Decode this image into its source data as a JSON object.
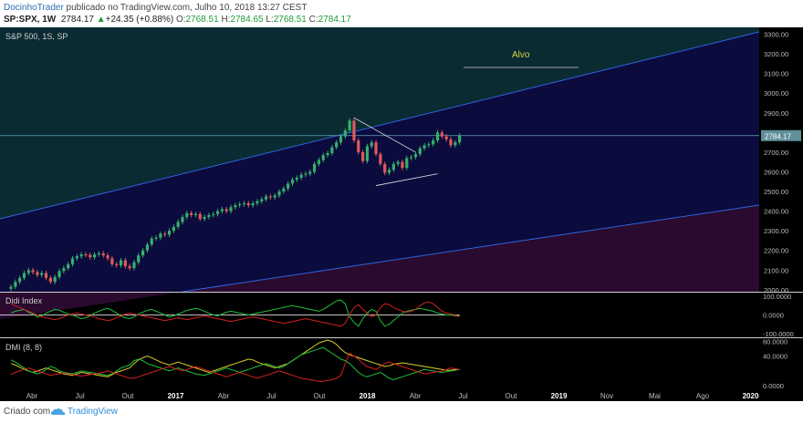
{
  "header": {
    "author": "DocinhoTrader",
    "published_text": " publicado no TradingView.com, Julho 10, 2018 13:27 CEST",
    "symbol": "SP:SPX, 1W",
    "last": "2784.17",
    "change": "+24.35 (+0.88%)",
    "open_label": "O:",
    "open": "2768.51",
    "high_label": "H:",
    "high": "2784.65",
    "low_label": "L:",
    "low": "2768.51",
    "close_label": "C:",
    "close": "2784.17"
  },
  "footer": {
    "created_with": "Criado com",
    "brand": "TradingView"
  },
  "colors": {
    "bg": "#000000",
    "up": "#35b06a",
    "down": "#e0595c",
    "channel_upper_fill": "#0b2b33",
    "channel_mid_fill": "#0b0b3d",
    "channel_lower_fill": "#2a0a2e",
    "channel_line": "#2f63e0",
    "price_line": "#66a8b8",
    "price_tag": "#5f8f98",
    "didi_green": "#1fbf3a",
    "didi_red": "#d62020",
    "dmi_yellow": "#d8cf2a",
    "target_text": "#d8d23c"
  },
  "chart_data": [
    {
      "type": "candlestick",
      "title": "S&P 500, 1S, SP",
      "price_scale": [
        "3300.00",
        "3200.00",
        "3100.00",
        "3000.00",
        "2900.00",
        "2800.00",
        "2700.00",
        "2600.00",
        "2500.00",
        "2400.00",
        "2300.00",
        "2200.00",
        "2100.00",
        "2000.00"
      ],
      "ylim": [
        1990,
        3335
      ],
      "last_price_label": "2784.17",
      "annotation": "Alvo",
      "closes": [
        2015,
        2040,
        2060,
        2085,
        2100,
        2090,
        2075,
        2085,
        2060,
        2040,
        2065,
        2095,
        2110,
        2130,
        2160,
        2170,
        2180,
        2178,
        2165,
        2180,
        2185,
        2175,
        2160,
        2130,
        2125,
        2150,
        2120,
        2110,
        2140,
        2175,
        2200,
        2230,
        2260,
        2265,
        2285,
        2280,
        2300,
        2320,
        2345,
        2370,
        2390,
        2380,
        2385,
        2360,
        2370,
        2380,
        2385,
        2400,
        2410,
        2400,
        2420,
        2430,
        2435,
        2440,
        2430,
        2440,
        2450,
        2460,
        2475,
        2470,
        2480,
        2500,
        2515,
        2540,
        2560,
        2570,
        2585,
        2590,
        2600,
        2640,
        2660,
        2685,
        2695,
        2725,
        2750,
        2780,
        2810,
        2860,
        2760,
        2700,
        2655,
        2730,
        2750,
        2690,
        2640,
        2595,
        2610,
        2640,
        2650,
        2620,
        2670,
        2675,
        2690,
        2720,
        2735,
        2740,
        2760,
        2800,
        2780,
        2765,
        2735,
        2750,
        2784.17
      ],
      "x_axis_labels": [
        "Abr",
        "Jul",
        "Out",
        "2017",
        "Abr",
        "Jul",
        "Out",
        "2018",
        "Abr",
        "Jul",
        "Out",
        "2019",
        "Nov",
        "Mai",
        "Ago",
        "2020"
      ]
    },
    {
      "type": "line",
      "title": "Didi Index",
      "scale_labels": [
        "100.0000",
        "0.0000",
        "-100.0000"
      ],
      "ylim": [
        -100,
        100
      ],
      "series": [
        {
          "name": "green",
          "values": [
            10,
            20,
            25,
            30,
            15,
            5,
            -10,
            -5,
            10,
            20,
            30,
            25,
            15,
            5,
            0,
            -10,
            -20,
            -15,
            -5,
            10,
            20,
            30,
            35,
            25,
            10,
            -5,
            -15,
            -20,
            -10,
            5,
            15,
            25,
            30,
            20,
            10,
            0,
            -10,
            -5,
            5,
            15,
            25,
            30,
            35,
            30,
            20,
            10,
            0,
            -5,
            5,
            15,
            20,
            15,
            10,
            5,
            0,
            5,
            10,
            15,
            20,
            25,
            30,
            35,
            40,
            45,
            50,
            45,
            40,
            35,
            30,
            25,
            20,
            30,
            45,
            60,
            75,
            80,
            60,
            -10,
            -40,
            -60,
            -20,
            10,
            30,
            20,
            -30,
            -60,
            -50,
            -30,
            -10,
            10,
            20,
            25,
            30,
            35,
            30,
            25,
            20,
            10,
            5,
            0,
            0,
            -5,
            -5
          ]
        },
        {
          "name": "red",
          "values": [
            60,
            50,
            40,
            30,
            20,
            10,
            0,
            -10,
            -15,
            -20,
            -25,
            -20,
            -10,
            0,
            5,
            10,
            5,
            0,
            -5,
            -10,
            -20,
            -25,
            -30,
            -25,
            -15,
            -5,
            5,
            10,
            5,
            0,
            -5,
            -10,
            -15,
            -20,
            -25,
            -30,
            -25,
            -20,
            -15,
            -20,
            -25,
            -20,
            -15,
            -10,
            -5,
            -10,
            -15,
            -20,
            -25,
            -30,
            -35,
            -30,
            -25,
            -20,
            -15,
            -10,
            -15,
            -20,
            -25,
            -30,
            -35,
            -40,
            -45,
            -40,
            -35,
            -30,
            -25,
            -20,
            -25,
            -30,
            -35,
            -40,
            -45,
            -50,
            -55,
            -60,
            -45,
            0,
            40,
            55,
            30,
            10,
            -10,
            0,
            40,
            60,
            55,
            40,
            30,
            20,
            15,
            20,
            30,
            50,
            65,
            70,
            60,
            40,
            20,
            10,
            5,
            0,
            -10
          ]
        }
      ]
    },
    {
      "type": "line",
      "title": "DMI (8, 8)",
      "scale_labels": [
        "60.0000",
        "40.0000",
        "0.0000"
      ],
      "ylim": [
        0,
        62
      ],
      "series": [
        {
          "name": "yellow",
          "values": [
            30,
            28,
            25,
            22,
            20,
            18,
            20,
            22,
            24,
            22,
            20,
            18,
            16,
            15,
            14,
            16,
            18,
            17,
            16,
            15,
            14,
            13,
            12,
            15,
            18,
            20,
            22,
            24,
            30,
            35,
            38,
            40,
            38,
            35,
            32,
            30,
            28,
            30,
            32,
            30,
            28,
            26,
            24,
            22,
            20,
            18,
            20,
            22,
            24,
            26,
            28,
            30,
            32,
            34,
            36,
            35,
            32,
            30,
            28,
            26,
            24,
            26,
            28,
            30,
            34,
            38,
            42,
            46,
            50,
            54,
            58,
            60,
            62,
            60,
            56,
            50,
            45,
            42,
            40,
            38,
            36,
            34,
            32,
            30,
            28,
            26,
            27,
            29,
            30,
            31,
            30,
            29,
            28,
            27,
            26,
            25,
            24,
            23,
            22,
            21,
            21,
            22,
            22
          ]
        },
        {
          "name": "green",
          "values": [
            35,
            32,
            28,
            24,
            20,
            18,
            16,
            18,
            22,
            26,
            24,
            20,
            18,
            17,
            16,
            18,
            20,
            19,
            18,
            17,
            16,
            15,
            14,
            16,
            20,
            24,
            26,
            28,
            34,
            36,
            34,
            30,
            28,
            26,
            24,
            22,
            20,
            22,
            24,
            22,
            20,
            18,
            16,
            15,
            14,
            16,
            18,
            20,
            22,
            24,
            22,
            20,
            18,
            20,
            22,
            24,
            26,
            28,
            30,
            28,
            26,
            24,
            26,
            30,
            34,
            38,
            42,
            44,
            46,
            48,
            50,
            52,
            48,
            44,
            40,
            36,
            34,
            30,
            24,
            18,
            14,
            12,
            14,
            16,
            18,
            14,
            10,
            8,
            10,
            12,
            14,
            16,
            18,
            20,
            22,
            21,
            20,
            19,
            18,
            19,
            20,
            21,
            22
          ]
        },
        {
          "name": "red",
          "values": [
            15,
            18,
            20,
            22,
            24,
            22,
            20,
            18,
            16,
            14,
            15,
            16,
            17,
            16,
            15,
            14,
            13,
            14,
            15,
            16,
            17,
            18,
            20,
            18,
            16,
            14,
            12,
            10,
            10,
            12,
            14,
            16,
            18,
            20,
            22,
            24,
            26,
            24,
            22,
            20,
            22,
            24,
            26,
            24,
            22,
            20,
            18,
            16,
            14,
            12,
            14,
            16,
            18,
            16,
            14,
            12,
            10,
            12,
            14,
            16,
            18,
            20,
            18,
            16,
            14,
            12,
            10,
            9,
            8,
            7,
            6,
            6,
            7,
            8,
            10,
            14,
            30,
            44,
            40,
            36,
            30,
            26,
            24,
            22,
            26,
            30,
            32,
            30,
            28,
            26,
            24,
            22,
            20,
            18,
            16,
            17,
            18,
            19,
            20,
            22,
            24,
            23,
            22
          ]
        }
      ]
    }
  ]
}
